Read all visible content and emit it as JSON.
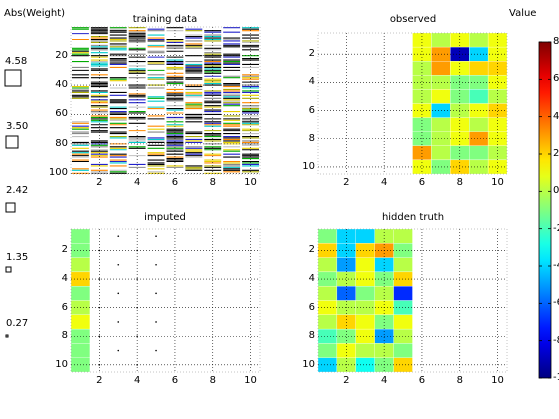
{
  "legend_title": "Abs(Weight)",
  "legend_values": [
    "4.58",
    "3.50",
    "2.42",
    "1.35",
    "0.27"
  ],
  "colorbar_title": "Value",
  "colorbar_ticks": [
    "8",
    "6",
    "4",
    "2",
    "0",
    "-2",
    "-4",
    "-6",
    "-8",
    "-10"
  ],
  "panels": {
    "training": {
      "title": "training data",
      "xticks": [
        "2",
        "4",
        "6",
        "8",
        "10"
      ],
      "yticks": [
        "20",
        "40",
        "60",
        "80",
        "100"
      ]
    },
    "observed": {
      "title": "observed",
      "xticks": [
        "2",
        "4",
        "6",
        "8",
        "10"
      ],
      "yticks": [
        "2",
        "4",
        "6",
        "8",
        "10"
      ]
    },
    "imputed": {
      "title": "imputed",
      "xticks": [
        "2",
        "4",
        "6",
        "8",
        "10"
      ],
      "yticks": [
        "2",
        "4",
        "6",
        "8",
        "10"
      ]
    },
    "hidden": {
      "title": "hidden truth",
      "xticks": [
        "2",
        "4",
        "6",
        "8",
        "10"
      ],
      "yticks": [
        "2",
        "4",
        "6",
        "8",
        "10"
      ]
    }
  },
  "colors": {
    "dark_blue": "#00008f",
    "blue": "#1f5fff",
    "cyan": "#20e0f0",
    "light_green": "#90f090",
    "yellow_green": "#c8f060",
    "yellow": "#f8f000",
    "orange": "#f8a020",
    "dark_red": "#800000"
  },
  "chart_data": [
    {
      "type": "heatmap",
      "title": "training data",
      "xlim": [
        0.5,
        10.5
      ],
      "ylim": [
        0.5,
        100.5
      ]
    },
    {
      "type": "heatmap",
      "title": "observed",
      "xlim": [
        0.5,
        10.5
      ],
      "ylim": [
        0.5,
        10.5
      ],
      "columns": [
        6,
        7,
        8,
        9,
        10
      ],
      "values": [
        [
          1,
          0,
          1,
          0,
          1
        ],
        [
          1,
          3,
          -9,
          -4,
          1
        ],
        [
          0,
          3,
          1,
          2,
          2
        ],
        [
          0,
          0,
          -1,
          -1,
          1
        ],
        [
          0,
          1,
          -1,
          -2,
          0
        ],
        [
          1,
          -4,
          0,
          1,
          2
        ],
        [
          -1,
          0,
          1,
          0,
          1
        ],
        [
          -1,
          0,
          1,
          3,
          1
        ],
        [
          3,
          0,
          -1,
          -1,
          0
        ],
        [
          1,
          -1,
          2,
          0,
          1
        ]
      ]
    },
    {
      "type": "heatmap",
      "title": "imputed",
      "xlim": [
        0.5,
        10.5
      ],
      "ylim": [
        0.5,
        10.5
      ],
      "columns": [
        1
      ],
      "values": [
        [
          -1
        ],
        [
          -1
        ],
        [
          0
        ],
        [
          2
        ],
        [
          -1
        ],
        [
          0
        ],
        [
          1
        ],
        [
          -1
        ],
        [
          -1
        ],
        [
          -1
        ]
      ]
    },
    {
      "type": "heatmap",
      "title": "hidden truth",
      "xlim": [
        0.5,
        10.5
      ],
      "ylim": [
        0.5,
        10.5
      ],
      "columns": [
        1,
        2,
        3,
        4,
        5
      ],
      "values": [
        [
          -1,
          -4,
          -4,
          0,
          0
        ],
        [
          2,
          -4,
          2,
          3,
          -1
        ],
        [
          0,
          -5,
          1,
          -4,
          0
        ],
        [
          -1,
          0,
          1,
          -1,
          2
        ],
        [
          0,
          -6,
          -1,
          0,
          -7
        ],
        [
          1,
          0,
          0,
          1,
          -2
        ],
        [
          0,
          2,
          1,
          -1,
          1
        ],
        [
          -2,
          -1,
          1,
          -5,
          0
        ],
        [
          -1,
          1,
          0,
          0,
          -1
        ],
        [
          -4,
          0,
          -3,
          -1,
          2
        ]
      ]
    }
  ]
}
